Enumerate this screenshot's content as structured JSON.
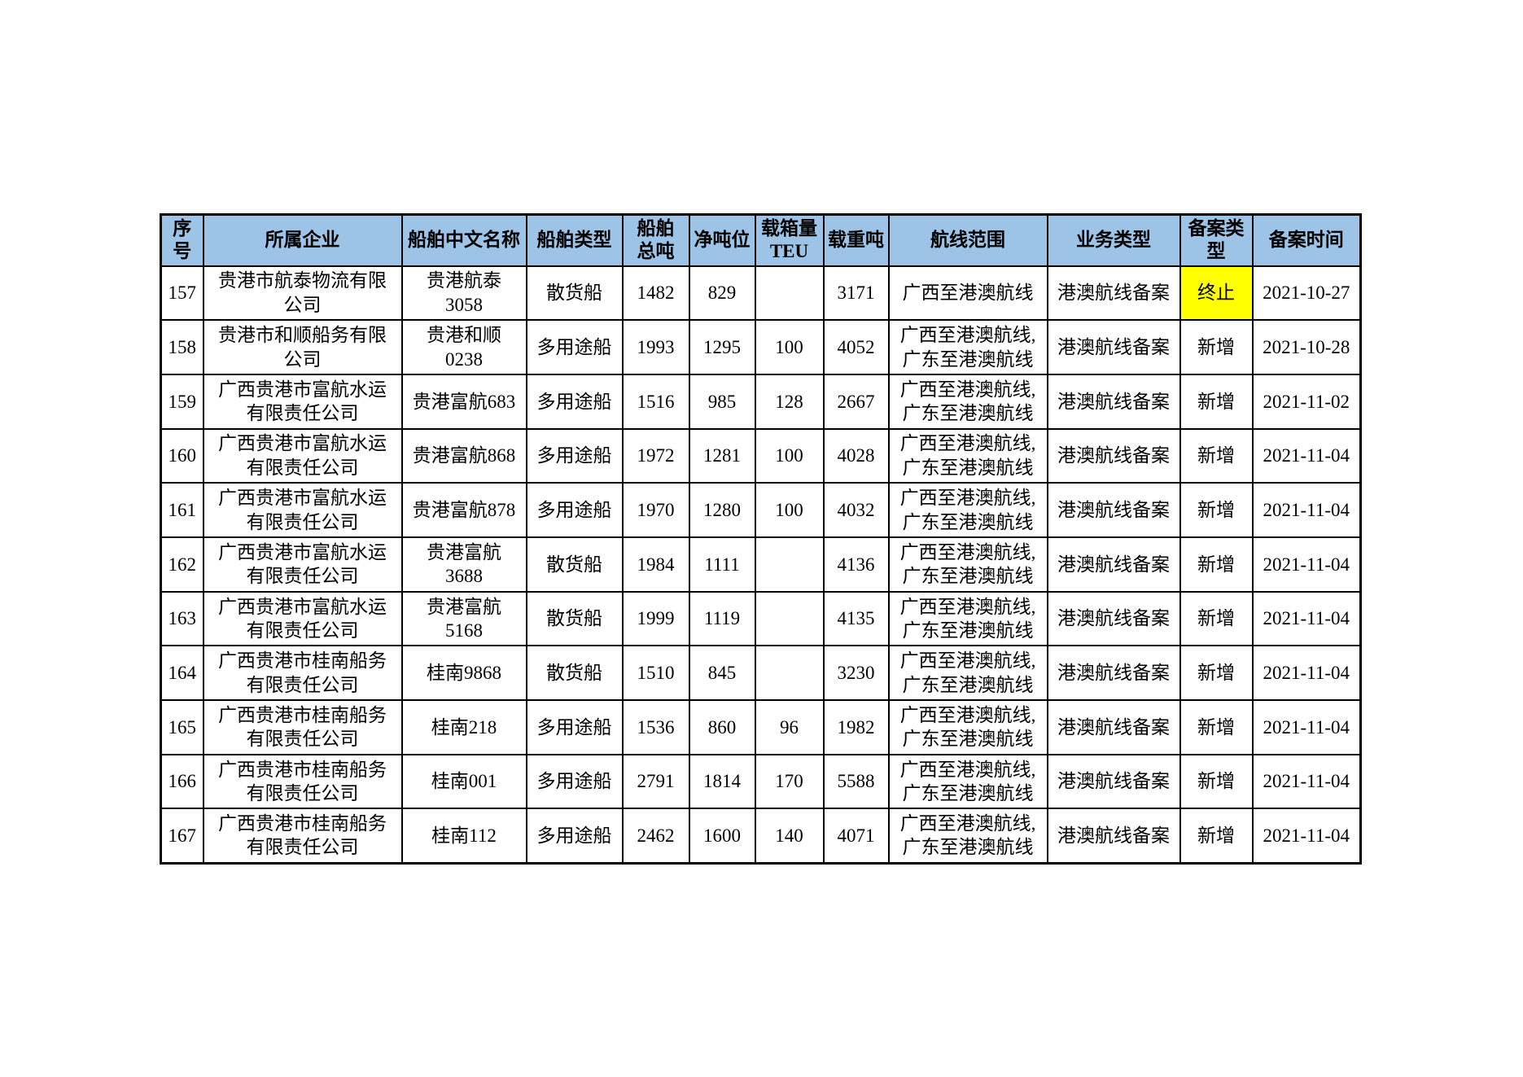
{
  "colors": {
    "page_background": "#FFFFFF",
    "header_background": "#9DC3E6",
    "highlight_background": "#FFFF00",
    "border": "#000000",
    "text": "#000000"
  },
  "table": {
    "columns": [
      {
        "key": "seq",
        "label": "序号"
      },
      {
        "key": "company",
        "label": "所属企业"
      },
      {
        "key": "ship_name",
        "label": "船舶中文名称"
      },
      {
        "key": "ship_type",
        "label": "船舶类型"
      },
      {
        "key": "gross_tonnage",
        "label": "船舶\n总吨"
      },
      {
        "key": "net_tonnage",
        "label": "净吨位"
      },
      {
        "key": "teu",
        "label": "载箱量\nTEU"
      },
      {
        "key": "dwt",
        "label": "载重吨"
      },
      {
        "key": "route",
        "label": "航线范围"
      },
      {
        "key": "business_type",
        "label": "业务类型"
      },
      {
        "key": "record_type",
        "label": "备案类\n型"
      },
      {
        "key": "record_date",
        "label": "备案时间"
      }
    ],
    "rows": [
      {
        "seq": "157",
        "company": "贵港市航泰物流有限\n公司",
        "ship_name": "贵港航泰\n3058",
        "ship_type": "散货船",
        "gross_tonnage": "1482",
        "net_tonnage": "829",
        "teu": "",
        "dwt": "3171",
        "route": "广西至港澳航线",
        "business_type": "港澳航线备案",
        "record_type": "终止",
        "record_type_highlight": true,
        "record_date": "2021-10-27"
      },
      {
        "seq": "158",
        "company": "贵港市和顺船务有限\n公司",
        "ship_name": "贵港和顺\n0238",
        "ship_type": "多用途船",
        "gross_tonnage": "1993",
        "net_tonnage": "1295",
        "teu": "100",
        "dwt": "4052",
        "route": "广西至港澳航线,\n广东至港澳航线",
        "business_type": "港澳航线备案",
        "record_type": "新增",
        "record_type_highlight": false,
        "record_date": "2021-10-28"
      },
      {
        "seq": "159",
        "company": "广西贵港市富航水运\n有限责任公司",
        "ship_name": "贵港富航683",
        "ship_type": "多用途船",
        "gross_tonnage": "1516",
        "net_tonnage": "985",
        "teu": "128",
        "dwt": "2667",
        "route": "广西至港澳航线,\n广东至港澳航线",
        "business_type": "港澳航线备案",
        "record_type": "新增",
        "record_type_highlight": false,
        "record_date": "2021-11-02"
      },
      {
        "seq": "160",
        "company": "广西贵港市富航水运\n有限责任公司",
        "ship_name": "贵港富航868",
        "ship_type": "多用途船",
        "gross_tonnage": "1972",
        "net_tonnage": "1281",
        "teu": "100",
        "dwt": "4028",
        "route": "广西至港澳航线,\n广东至港澳航线",
        "business_type": "港澳航线备案",
        "record_type": "新增",
        "record_type_highlight": false,
        "record_date": "2021-11-04"
      },
      {
        "seq": "161",
        "company": "广西贵港市富航水运\n有限责任公司",
        "ship_name": "贵港富航878",
        "ship_type": "多用途船",
        "gross_tonnage": "1970",
        "net_tonnage": "1280",
        "teu": "100",
        "dwt": "4032",
        "route": "广西至港澳航线,\n广东至港澳航线",
        "business_type": "港澳航线备案",
        "record_type": "新增",
        "record_type_highlight": false,
        "record_date": "2021-11-04"
      },
      {
        "seq": "162",
        "company": "广西贵港市富航水运\n有限责任公司",
        "ship_name": "贵港富航\n3688",
        "ship_type": "散货船",
        "gross_tonnage": "1984",
        "net_tonnage": "1111",
        "teu": "",
        "dwt": "4136",
        "route": "广西至港澳航线,\n广东至港澳航线",
        "business_type": "港澳航线备案",
        "record_type": "新增",
        "record_type_highlight": false,
        "record_date": "2021-11-04"
      },
      {
        "seq": "163",
        "company": "广西贵港市富航水运\n有限责任公司",
        "ship_name": "贵港富航\n5168",
        "ship_type": "散货船",
        "gross_tonnage": "1999",
        "net_tonnage": "1119",
        "teu": "",
        "dwt": "4135",
        "route": "广西至港澳航线,\n广东至港澳航线",
        "business_type": "港澳航线备案",
        "record_type": "新增",
        "record_type_highlight": false,
        "record_date": "2021-11-04"
      },
      {
        "seq": "164",
        "company": "广西贵港市桂南船务\n有限责任公司",
        "ship_name": "桂南9868",
        "ship_type": "散货船",
        "gross_tonnage": "1510",
        "net_tonnage": "845",
        "teu": "",
        "dwt": "3230",
        "route": "广西至港澳航线,\n广东至港澳航线",
        "business_type": "港澳航线备案",
        "record_type": "新增",
        "record_type_highlight": false,
        "record_date": "2021-11-04"
      },
      {
        "seq": "165",
        "company": "广西贵港市桂南船务\n有限责任公司",
        "ship_name": "桂南218",
        "ship_type": "多用途船",
        "gross_tonnage": "1536",
        "net_tonnage": "860",
        "teu": "96",
        "dwt": "1982",
        "route": "广西至港澳航线,\n广东至港澳航线",
        "business_type": "港澳航线备案",
        "record_type": "新增",
        "record_type_highlight": false,
        "record_date": "2021-11-04"
      },
      {
        "seq": "166",
        "company": "广西贵港市桂南船务\n有限责任公司",
        "ship_name": "桂南001",
        "ship_type": "多用途船",
        "gross_tonnage": "2791",
        "net_tonnage": "1814",
        "teu": "170",
        "dwt": "5588",
        "route": "广西至港澳航线,\n广东至港澳航线",
        "business_type": "港澳航线备案",
        "record_type": "新增",
        "record_type_highlight": false,
        "record_date": "2021-11-04"
      },
      {
        "seq": "167",
        "company": "广西贵港市桂南船务\n有限责任公司",
        "ship_name": "桂南112",
        "ship_type": "多用途船",
        "gross_tonnage": "2462",
        "net_tonnage": "1600",
        "teu": "140",
        "dwt": "4071",
        "route": "广西至港澳航线,\n广东至港澳航线",
        "business_type": "港澳航线备案",
        "record_type": "新增",
        "record_type_highlight": false,
        "record_date": "2021-11-04"
      }
    ]
  }
}
